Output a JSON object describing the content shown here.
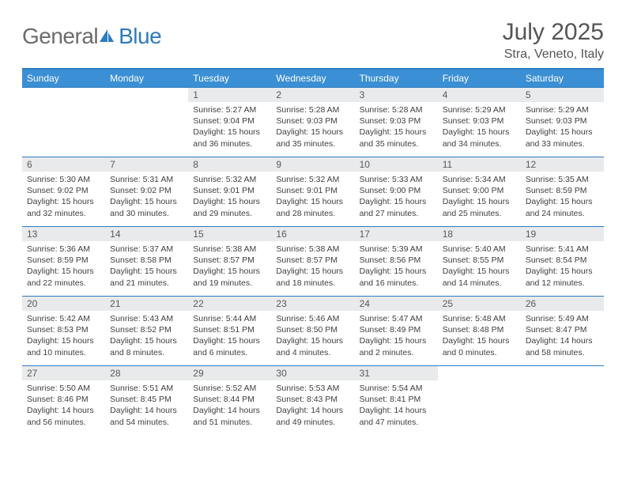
{
  "logo": {
    "part1": "General",
    "part2": "Blue",
    "icon_color": "#2d7bc0"
  },
  "title": "July 2025",
  "location": "Stra, Veneto, Italy",
  "header_bg": "#3b8fd4",
  "border_color": "#2d7bc0",
  "daynum_bg": "#e9eaeb",
  "weekdays": [
    "Sunday",
    "Monday",
    "Tuesday",
    "Wednesday",
    "Thursday",
    "Friday",
    "Saturday"
  ],
  "weeks": [
    [
      null,
      null,
      {
        "n": "1",
        "sr": "5:27 AM",
        "ss": "9:04 PM",
        "dl": "15 hours and 36 minutes."
      },
      {
        "n": "2",
        "sr": "5:28 AM",
        "ss": "9:03 PM",
        "dl": "15 hours and 35 minutes."
      },
      {
        "n": "3",
        "sr": "5:28 AM",
        "ss": "9:03 PM",
        "dl": "15 hours and 35 minutes."
      },
      {
        "n": "4",
        "sr": "5:29 AM",
        "ss": "9:03 PM",
        "dl": "15 hours and 34 minutes."
      },
      {
        "n": "5",
        "sr": "5:29 AM",
        "ss": "9:03 PM",
        "dl": "15 hours and 33 minutes."
      }
    ],
    [
      {
        "n": "6",
        "sr": "5:30 AM",
        "ss": "9:02 PM",
        "dl": "15 hours and 32 minutes."
      },
      {
        "n": "7",
        "sr": "5:31 AM",
        "ss": "9:02 PM",
        "dl": "15 hours and 30 minutes."
      },
      {
        "n": "8",
        "sr": "5:32 AM",
        "ss": "9:01 PM",
        "dl": "15 hours and 29 minutes."
      },
      {
        "n": "9",
        "sr": "5:32 AM",
        "ss": "9:01 PM",
        "dl": "15 hours and 28 minutes."
      },
      {
        "n": "10",
        "sr": "5:33 AM",
        "ss": "9:00 PM",
        "dl": "15 hours and 27 minutes."
      },
      {
        "n": "11",
        "sr": "5:34 AM",
        "ss": "9:00 PM",
        "dl": "15 hours and 25 minutes."
      },
      {
        "n": "12",
        "sr": "5:35 AM",
        "ss": "8:59 PM",
        "dl": "15 hours and 24 minutes."
      }
    ],
    [
      {
        "n": "13",
        "sr": "5:36 AM",
        "ss": "8:59 PM",
        "dl": "15 hours and 22 minutes."
      },
      {
        "n": "14",
        "sr": "5:37 AM",
        "ss": "8:58 PM",
        "dl": "15 hours and 21 minutes."
      },
      {
        "n": "15",
        "sr": "5:38 AM",
        "ss": "8:57 PM",
        "dl": "15 hours and 19 minutes."
      },
      {
        "n": "16",
        "sr": "5:38 AM",
        "ss": "8:57 PM",
        "dl": "15 hours and 18 minutes."
      },
      {
        "n": "17",
        "sr": "5:39 AM",
        "ss": "8:56 PM",
        "dl": "15 hours and 16 minutes."
      },
      {
        "n": "18",
        "sr": "5:40 AM",
        "ss": "8:55 PM",
        "dl": "15 hours and 14 minutes."
      },
      {
        "n": "19",
        "sr": "5:41 AM",
        "ss": "8:54 PM",
        "dl": "15 hours and 12 minutes."
      }
    ],
    [
      {
        "n": "20",
        "sr": "5:42 AM",
        "ss": "8:53 PM",
        "dl": "15 hours and 10 minutes."
      },
      {
        "n": "21",
        "sr": "5:43 AM",
        "ss": "8:52 PM",
        "dl": "15 hours and 8 minutes."
      },
      {
        "n": "22",
        "sr": "5:44 AM",
        "ss": "8:51 PM",
        "dl": "15 hours and 6 minutes."
      },
      {
        "n": "23",
        "sr": "5:46 AM",
        "ss": "8:50 PM",
        "dl": "15 hours and 4 minutes."
      },
      {
        "n": "24",
        "sr": "5:47 AM",
        "ss": "8:49 PM",
        "dl": "15 hours and 2 minutes."
      },
      {
        "n": "25",
        "sr": "5:48 AM",
        "ss": "8:48 PM",
        "dl": "15 hours and 0 minutes."
      },
      {
        "n": "26",
        "sr": "5:49 AM",
        "ss": "8:47 PM",
        "dl": "14 hours and 58 minutes."
      }
    ],
    [
      {
        "n": "27",
        "sr": "5:50 AM",
        "ss": "8:46 PM",
        "dl": "14 hours and 56 minutes."
      },
      {
        "n": "28",
        "sr": "5:51 AM",
        "ss": "8:45 PM",
        "dl": "14 hours and 54 minutes."
      },
      {
        "n": "29",
        "sr": "5:52 AM",
        "ss": "8:44 PM",
        "dl": "14 hours and 51 minutes."
      },
      {
        "n": "30",
        "sr": "5:53 AM",
        "ss": "8:43 PM",
        "dl": "14 hours and 49 minutes."
      },
      {
        "n": "31",
        "sr": "5:54 AM",
        "ss": "8:41 PM",
        "dl": "14 hours and 47 minutes."
      },
      null,
      null
    ]
  ],
  "labels": {
    "sunrise": "Sunrise: ",
    "sunset": "Sunset: ",
    "daylight": "Daylight: "
  }
}
